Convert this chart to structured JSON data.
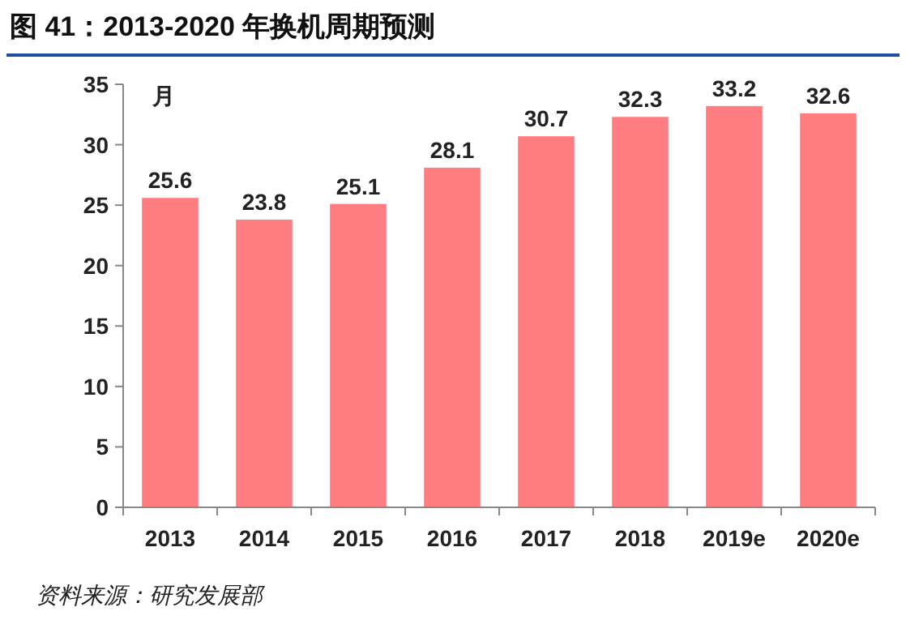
{
  "chart_data": {
    "type": "bar",
    "title": "图 41：2013-2020 年换机周期预测",
    "ylabel": "月",
    "categories": [
      "2013",
      "2014",
      "2015",
      "2016",
      "2017",
      "2018",
      "2019e",
      "2020e"
    ],
    "values": [
      25.6,
      23.8,
      25.1,
      28.1,
      30.7,
      32.3,
      33.2,
      32.6
    ],
    "color": "#ff7c80",
    "ylim": [
      0,
      35
    ],
    "yticks": [
      0,
      5,
      10,
      15,
      20,
      25,
      30,
      35
    ],
    "grid": false,
    "data_labels": true,
    "annotations": [
      "资料来源：研究发展部"
    ]
  }
}
